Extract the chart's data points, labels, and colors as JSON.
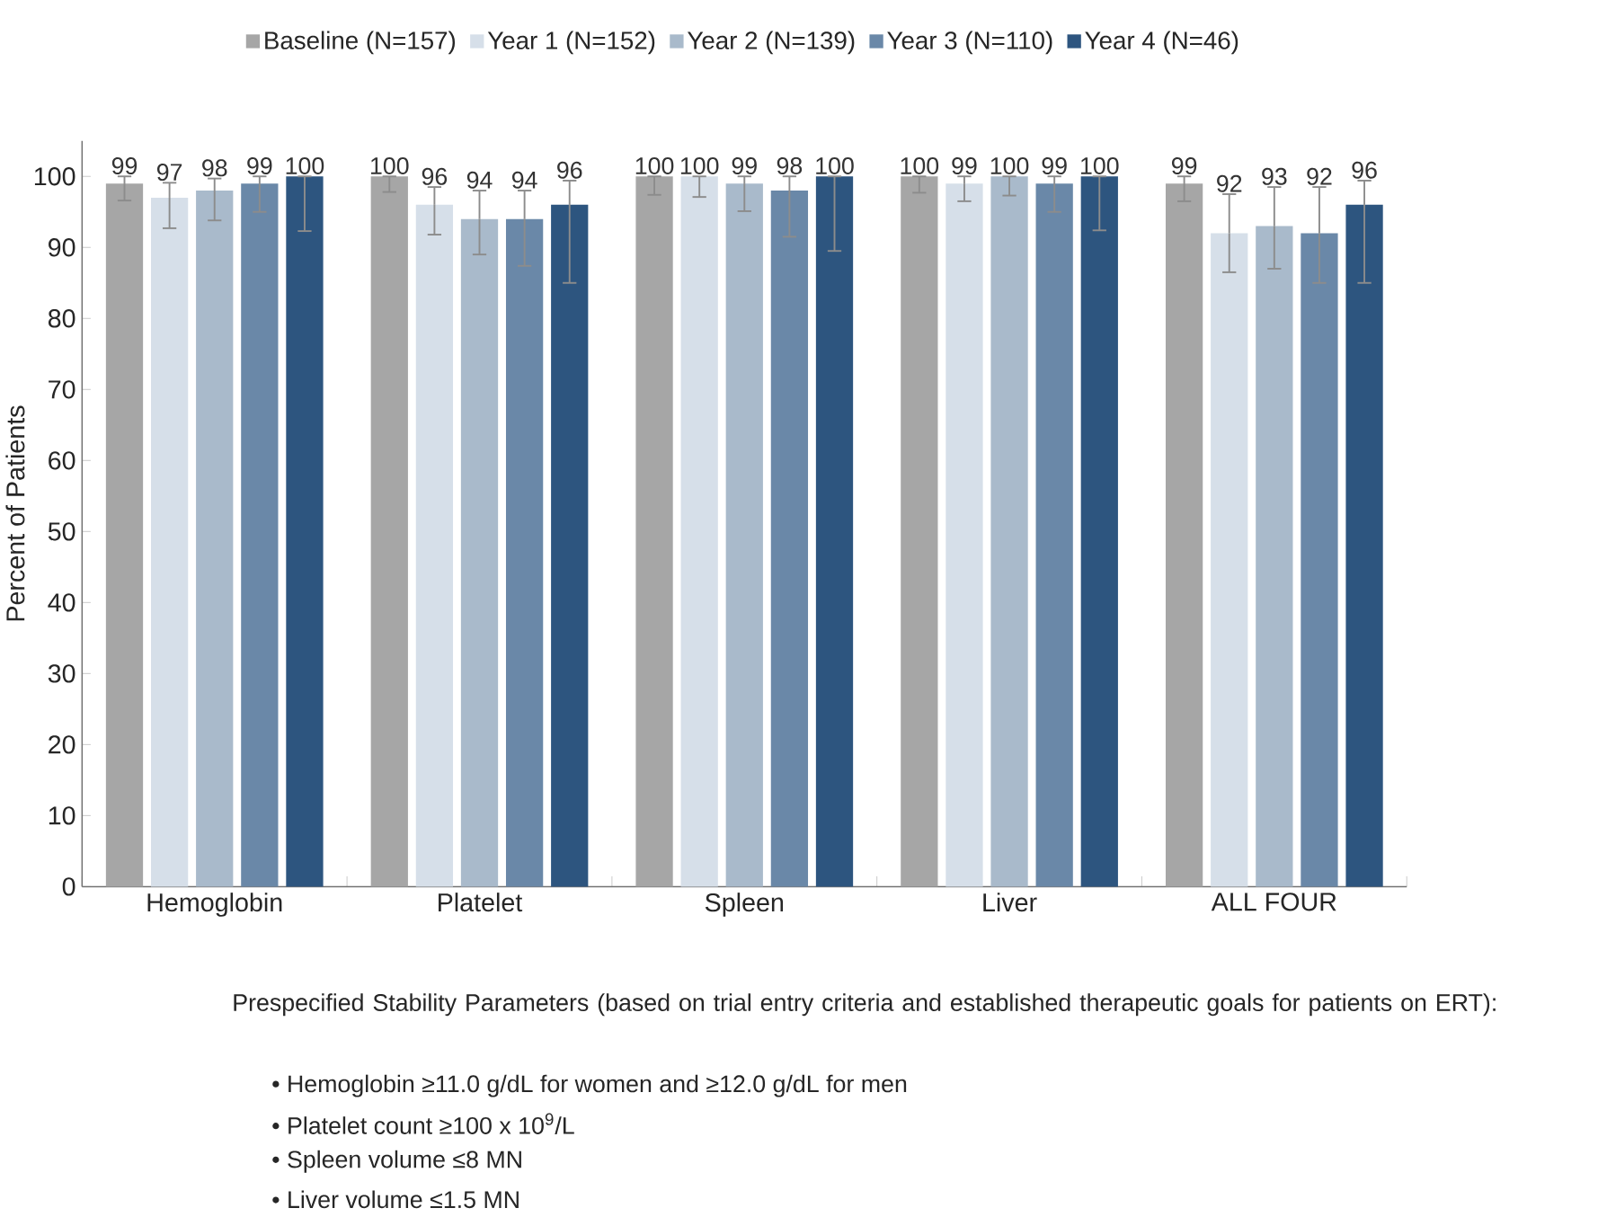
{
  "chart_data": {
    "type": "bar",
    "ylabel": "Percent of Patients",
    "categories": [
      "Hemoglobin",
      "Platelet",
      "Spleen",
      "Liver",
      "ALL FOUR"
    ],
    "ylim": [
      0,
      105
    ],
    "yticks": [
      0,
      10,
      20,
      30,
      40,
      50,
      60,
      70,
      80,
      90,
      100
    ],
    "legend": "top",
    "data_labels": true,
    "grid": false,
    "series": [
      {
        "name": "Baseline (N=157)",
        "color": "#a6a6a6",
        "values": [
          99,
          100,
          100,
          100,
          99
        ],
        "errors": [
          [
            96.6,
            100
          ],
          [
            97.8,
            100
          ],
          [
            97.4,
            100
          ],
          [
            97.7,
            100
          ],
          [
            96.5,
            100
          ]
        ]
      },
      {
        "name": "Year 1 (N=152)",
        "color": "#d6dfe9",
        "values": [
          97,
          96,
          100,
          99,
          92
        ],
        "errors": [
          [
            92.7,
            99.1
          ],
          [
            91.8,
            98.5
          ],
          [
            97.1,
            100
          ],
          [
            96.5,
            100
          ],
          [
            86.5,
            97.5
          ]
        ]
      },
      {
        "name": "Year 2 (N=139)",
        "color": "#a9bacb",
        "values": [
          98,
          94,
          99,
          100,
          93
        ],
        "errors": [
          [
            93.8,
            99.7
          ],
          [
            89,
            98
          ],
          [
            95.1,
            100
          ],
          [
            97.3,
            100
          ],
          [
            87,
            98.5
          ]
        ]
      },
      {
        "name": "Year 3 (N=110)",
        "color": "#6a88a8",
        "values": [
          99,
          94,
          98,
          99,
          92
        ],
        "errors": [
          [
            95,
            100
          ],
          [
            87.4,
            98
          ],
          [
            91.5,
            100
          ],
          [
            95,
            100
          ],
          [
            85,
            98.5
          ]
        ]
      },
      {
        "name": "Year 4 (N=46)",
        "color": "#2d557f",
        "values": [
          100,
          96,
          100,
          100,
          96
        ],
        "errors": [
          [
            92.3,
            100
          ],
          [
            85,
            99.4
          ],
          [
            89.5,
            100
          ],
          [
            92.4,
            100
          ],
          [
            85,
            99.4
          ]
        ]
      }
    ],
    "annotations": [
      "Prespecified Stability Parameters (based on trial entry criteria and established therapeutic goals for patients on ERT):",
      "• Hemoglobin ≥11.0 g/dL for women and ≥12.0 g/dL for men",
      "• Platelet count ≥100 x 10$^{9}$/L",
      "• Spleen volume ≤8 MN",
      "• Liver volume ≤1.5 MN"
    ]
  }
}
